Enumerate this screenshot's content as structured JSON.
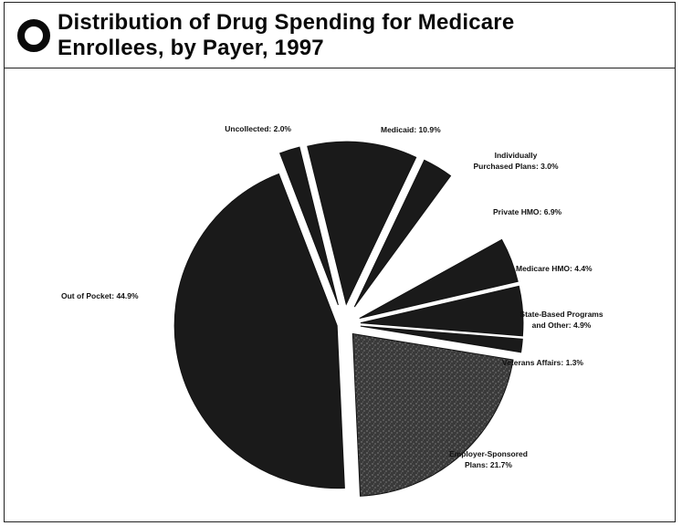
{
  "header": {
    "title_line1": "Distribution of Drug Spending for Medicare",
    "title_line2": "Enrollees, by Payer, 1997",
    "logo_icon": "ring-logo-icon"
  },
  "chart_data": {
    "type": "pie",
    "title": "Distribution of Drug Spending for Medicare Enrollees, by Payer, 1997",
    "slices": [
      {
        "label": "Uncollected: 2.0%",
        "value": 2.0,
        "color": "#1a1a1a"
      },
      {
        "label": "Medicaid: 10.9%",
        "value": 10.9,
        "color": "#1a1a1a"
      },
      {
        "label": "Individually Purchased Plans: 3.0%",
        "value": 3.0,
        "color": "#1a1a1a"
      },
      {
        "label": "Private HMO: 6.9%",
        "value": 6.9,
        "color": "#ffffff"
      },
      {
        "label": "Medicare HMO: 4.4%",
        "value": 4.4,
        "color": "#1a1a1a"
      },
      {
        "label": "State-Based Programs and Other: 4.9%",
        "value": 4.9,
        "color": "#1a1a1a"
      },
      {
        "label": "Veterans Affairs: 1.3%",
        "value": 1.3,
        "color": "#1a1a1a"
      },
      {
        "label": "Employer-Sponsored Plans: 21.7%",
        "value": 21.7,
        "color": "#3a3a3a"
      },
      {
        "label": "Out of Pocket: 44.9%",
        "value": 44.9,
        "color": "#1a1a1a"
      }
    ]
  }
}
